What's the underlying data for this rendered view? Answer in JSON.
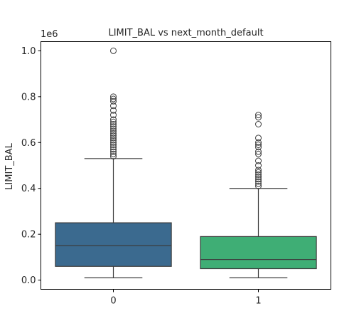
{
  "chart_data": {
    "type": "box",
    "title": "LIMIT_BAL vs next_month_default",
    "xlabel": "",
    "ylabel": "LIMIT_BAL",
    "y_offset_label": "1e6",
    "ylim": [
      -0.04,
      1.04
    ],
    "y_ticks": [
      0.0,
      0.2,
      0.4,
      0.6,
      0.8,
      1.0
    ],
    "y_tick_labels": [
      "0.0",
      "0.2",
      "0.4",
      "0.6",
      "0.8",
      "1.0"
    ],
    "categories": [
      "0",
      "1"
    ],
    "grid": false,
    "boxes": [
      {
        "category": "0",
        "color": "#3b6a8f",
        "whisker_low": 0.01,
        "q1": 0.06,
        "median": 0.15,
        "q3": 0.25,
        "whisker_high": 0.53,
        "outliers": [
          0.54,
          0.55,
          0.56,
          0.57,
          0.58,
          0.59,
          0.6,
          0.61,
          0.62,
          0.63,
          0.64,
          0.65,
          0.66,
          0.67,
          0.68,
          0.69,
          0.7,
          0.72,
          0.74,
          0.76,
          0.78,
          0.79,
          0.8,
          1.0
        ]
      },
      {
        "category": "1",
        "color": "#3fae75",
        "whisker_low": 0.01,
        "q1": 0.05,
        "median": 0.09,
        "q3": 0.19,
        "whisker_high": 0.4,
        "outliers": [
          0.41,
          0.42,
          0.43,
          0.44,
          0.45,
          0.46,
          0.47,
          0.48,
          0.5,
          0.52,
          0.55,
          0.56,
          0.58,
          0.59,
          0.6,
          0.62,
          0.68,
          0.71,
          0.72
        ]
      }
    ]
  }
}
